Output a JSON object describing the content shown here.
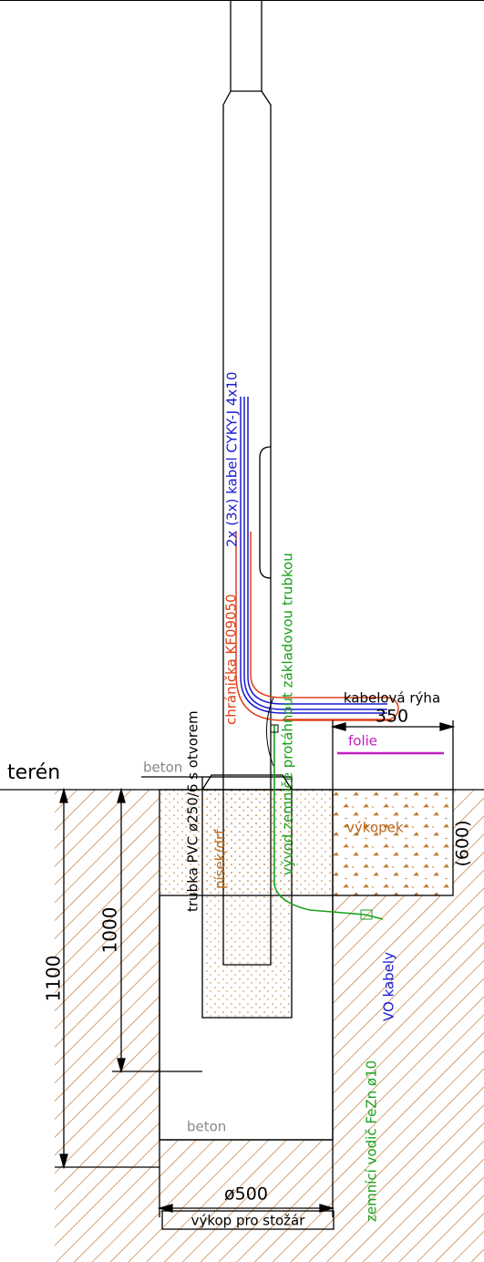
{
  "labels": {
    "ground": "terén",
    "concrete_top": "beton",
    "pipe": "trubka PVC ø250/6 s otvorem",
    "protector": "chránička KF09050",
    "cable": "2x (3x) kabel CYKY-J 4x10",
    "earth_outlet": "vývod zemniče protáhnout základovou trubkou",
    "trench": "kabelová rýha",
    "excavated_soil": "výkopek",
    "foil": "folie",
    "sand": "písek/drť",
    "earth_wire": "zemnící vodič FeZn ø10",
    "vo_cables": "VO kabely",
    "concrete_bottom": "beton",
    "pit": "výkop pro stožár"
  },
  "dimensions": {
    "trench_width": 350,
    "trench_depth": "(600)",
    "total_depth": 1100,
    "pipe_depth": 1000,
    "pit_diameter": "ø500"
  }
}
